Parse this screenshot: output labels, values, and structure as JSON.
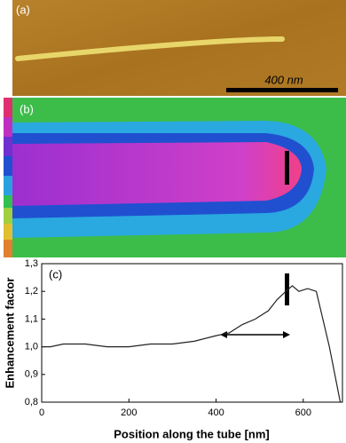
{
  "panels": {
    "a": {
      "label": "(a)",
      "scale_bar": "400 nm"
    },
    "b": {
      "label": "(b)"
    }
  },
  "chart_data": {
    "type": "line",
    "label": "(c)",
    "x_label": "Position along the tube [nm]",
    "y_label": "Enhancement factor",
    "x": [
      0,
      20,
      50,
      100,
      150,
      200,
      250,
      300,
      350,
      400,
      430,
      460,
      490,
      520,
      540,
      560,
      575,
      590,
      610,
      630,
      645,
      660,
      675,
      685
    ],
    "values": [
      1.0,
      1.0,
      1.01,
      1.01,
      1.0,
      1.0,
      1.01,
      1.01,
      1.02,
      1.04,
      1.05,
      1.08,
      1.1,
      1.13,
      1.17,
      1.2,
      1.22,
      1.2,
      1.21,
      1.2,
      1.1,
      1.0,
      0.88,
      0.8
    ],
    "color": "#222222",
    "xlim": [
      0,
      690
    ],
    "xticks": [
      0,
      200,
      400,
      600
    ],
    "ylim": [
      0.8,
      1.3
    ],
    "yticks": [
      {
        "value": 0.8,
        "label": "0,8"
      },
      {
        "value": 0.9,
        "label": "0,9"
      },
      {
        "value": 1.0,
        "label": "1,0"
      },
      {
        "value": 1.1,
        "label": "1,1"
      },
      {
        "value": 1.2,
        "label": "1,2"
      },
      {
        "value": 1.3,
        "label": "1,3"
      }
    ]
  }
}
